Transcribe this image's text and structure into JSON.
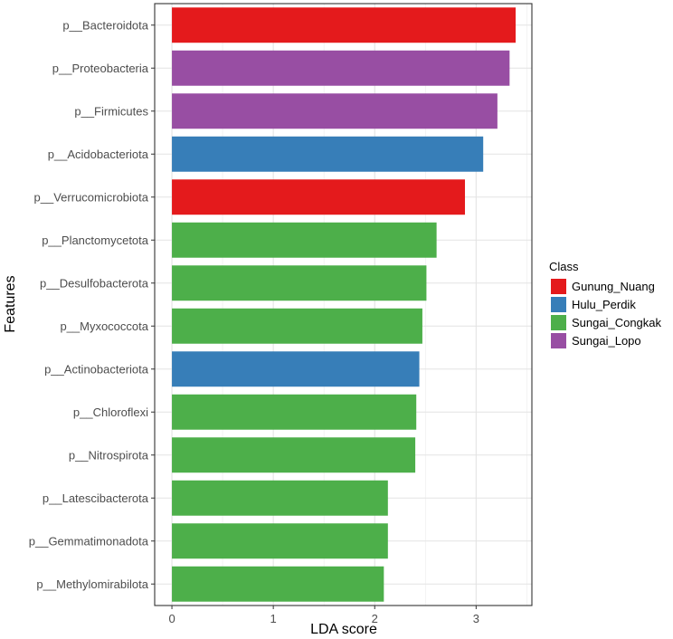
{
  "chart_data": {
    "type": "bar",
    "orientation": "horizontal",
    "xlabel": "LDA score",
    "ylabel": "Features",
    "xlim": [
      -0.17,
      3.55
    ],
    "xticks": [
      0,
      1,
      2,
      3
    ],
    "grid": true,
    "legend": {
      "title": "Class",
      "position": "right",
      "entries": [
        {
          "name": "Gunung_Nuang",
          "color": "#E41A1C"
        },
        {
          "name": "Hulu_Perdik",
          "color": "#377EB8"
        },
        {
          "name": "Sungai_Congkak",
          "color": "#4DAF4A"
        },
        {
          "name": "Sungai_Lopo",
          "color": "#984EA3"
        }
      ]
    },
    "categories": [
      "p__Bacteroidota",
      "p__Proteobacteria",
      "p__Firmicutes",
      "p__Acidobacteriota",
      "p__Verrucomicrobiota",
      "p__Planctomycetota",
      "p__Desulfobacterota",
      "p__Myxococcota",
      "p__Actinobacteriota",
      "p__Chloroflexi",
      "p__Nitrospirota",
      "p__Latescibacterota",
      "p__Gemmatimonadota",
      "p__Methylomirabilota"
    ],
    "values": [
      3.39,
      3.33,
      3.21,
      3.07,
      2.89,
      2.61,
      2.51,
      2.47,
      2.44,
      2.41,
      2.4,
      2.13,
      2.13,
      2.09
    ],
    "classes": [
      "Gunung_Nuang",
      "Sungai_Lopo",
      "Sungai_Lopo",
      "Hulu_Perdik",
      "Gunung_Nuang",
      "Sungai_Congkak",
      "Sungai_Congkak",
      "Sungai_Congkak",
      "Hulu_Perdik",
      "Sungai_Congkak",
      "Sungai_Congkak",
      "Sungai_Congkak",
      "Sungai_Congkak",
      "Sungai_Congkak"
    ]
  }
}
